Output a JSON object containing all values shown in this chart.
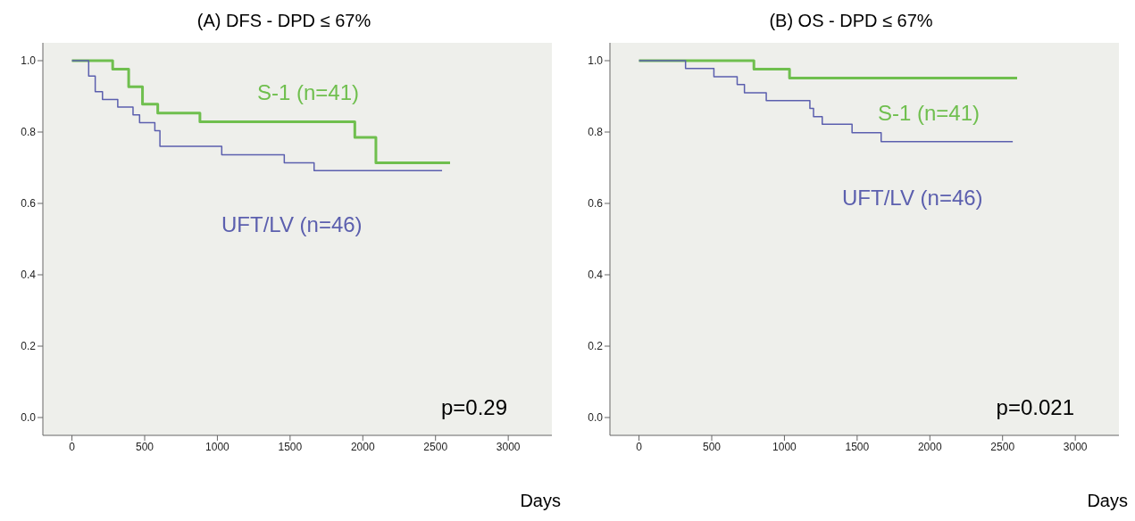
{
  "chart_data": [
    {
      "type": "step",
      "title": "(A) DFS - DPD ≤ 67%",
      "xlabel": "Days",
      "xlim": [
        -200,
        3300
      ],
      "xticks": [
        0,
        500,
        1000,
        1500,
        2000,
        2500,
        3000
      ],
      "ylim": [
        -0.05,
        1.05
      ],
      "yticks": [
        {
          "value": 0,
          "label": "0.0"
        },
        {
          "value": 0.2,
          "label": "0.2"
        },
        {
          "value": 0.4,
          "label": "0.4"
        },
        {
          "value": 0.6,
          "label": "0.6"
        },
        {
          "value": 0.8,
          "label": "0.8"
        },
        {
          "value": 1,
          "label": "1.0"
        }
      ],
      "annotations": [
        "p=0.29"
      ],
      "series": [
        {
          "name": "S-1 (n=41)",
          "color": "#6fbf4e",
          "x": [
            0,
            280,
            390,
            485,
            590,
            880,
            1945,
            2090,
            2600
          ],
          "values": [
            1,
            0.976,
            0.927,
            0.878,
            0.853,
            0.829,
            0.785,
            0.714,
            0.714
          ]
        },
        {
          "name": "UFT/LV (n=46)",
          "color": "#5b5fae",
          "x": [
            0,
            115,
            160,
            210,
            315,
            420,
            465,
            570,
            605,
            1030,
            1460,
            1665,
            2545
          ],
          "values": [
            1,
            0.957,
            0.913,
            0.891,
            0.87,
            0.848,
            0.826,
            0.804,
            0.76,
            0.736,
            0.714,
            0.692,
            0.692
          ]
        }
      ]
    },
    {
      "type": "step",
      "title": "(B) OS - DPD ≤ 67%",
      "xlabel": "Days",
      "xlim": [
        -200,
        3300
      ],
      "xticks": [
        0,
        500,
        1000,
        1500,
        2000,
        2500,
        3000
      ],
      "ylim": [
        -0.05,
        1.05
      ],
      "yticks": [
        {
          "value": 0,
          "label": "0.0"
        },
        {
          "value": 0.2,
          "label": "0.2"
        },
        {
          "value": 0.4,
          "label": "0.4"
        },
        {
          "value": 0.6,
          "label": "0.6"
        },
        {
          "value": 0.8,
          "label": "0.8"
        },
        {
          "value": 1,
          "label": "1.0"
        }
      ],
      "annotations": [
        "p=0.021"
      ],
      "series": [
        {
          "name": "S-1 (n=41)",
          "color": "#6fbf4e",
          "x": [
            0,
            790,
            1035,
            2600
          ],
          "values": [
            1,
            0.976,
            0.951,
            0.951
          ]
        },
        {
          "name": "UFT/LV (n=46)",
          "color": "#5b5fae",
          "x": [
            0,
            320,
            515,
            675,
            725,
            875,
            1175,
            1200,
            1260,
            1465,
            1665,
            2570
          ],
          "values": [
            1,
            0.978,
            0.955,
            0.933,
            0.91,
            0.888,
            0.866,
            0.843,
            0.822,
            0.798,
            0.773,
            0.773
          ]
        }
      ]
    }
  ]
}
